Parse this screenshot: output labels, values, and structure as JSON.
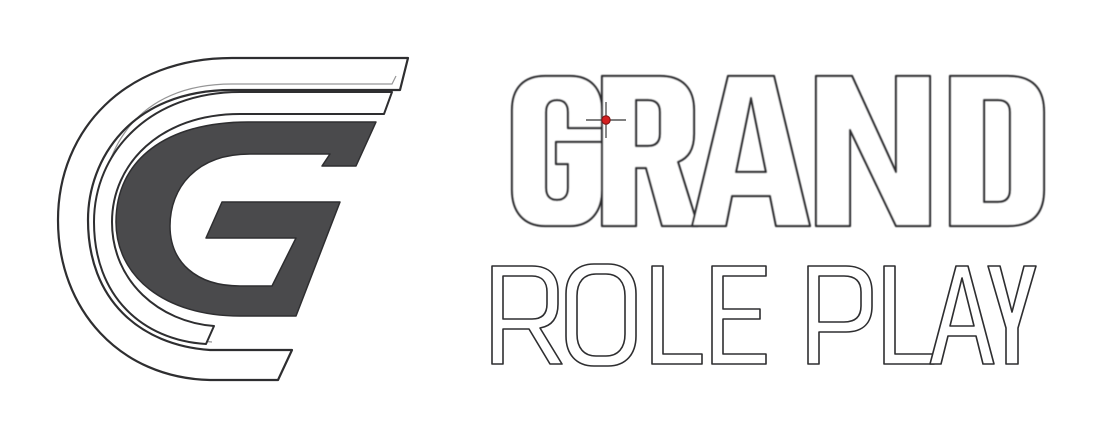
{
  "logo": {
    "line1": "GRAND",
    "line2": "ROLE PLAY",
    "emblem_letter": "G"
  },
  "colors": {
    "background": "#ffffff",
    "emblem_fill": "#4a4a4c",
    "outline": "#2e2e30",
    "cursor_dot": "#d42020"
  },
  "icons": {
    "emblem": "g-emblem-icon",
    "cursor": "crosshair-cursor-icon"
  }
}
